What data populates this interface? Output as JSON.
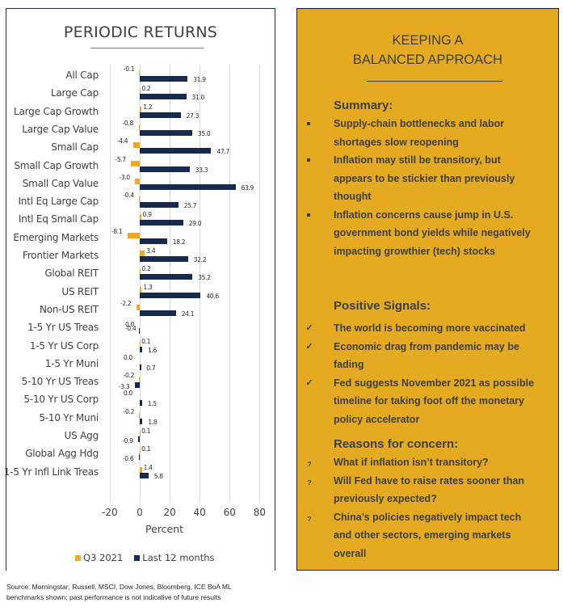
{
  "left_panel": {
    "title": "PERIODIC RETURNS",
    "x_axis_label": "Percent",
    "x_ticks": [
      "-20",
      "0",
      "20",
      "40",
      "60",
      "80"
    ],
    "legend": [
      {
        "label": "Q3 2021",
        "color": "#F5A623"
      },
      {
        "label": "Last 12 months",
        "color": "#172A4E"
      }
    ]
  },
  "chart_data": {
    "type": "bar",
    "orientation": "horizontal",
    "title": "PERIODIC RETURNS",
    "xlabel": "Percent",
    "ylabel": "",
    "xlim": [
      -20,
      80
    ],
    "x_ticks": [
      -20,
      0,
      20,
      40,
      60,
      80
    ],
    "grid": true,
    "legend_position": "bottom",
    "categories": [
      "All Cap",
      "Large Cap",
      "Large Cap Growth",
      "Large Cap Value",
      "Small Cap",
      "Small Cap Growth",
      "Small Cap Value",
      "Intl Eq Large Cap",
      "Intl Eq Small Cap",
      "Emerging Markets",
      "Frontier Markets",
      "Global REIT",
      "US REIT",
      "Non-US REIT",
      "1-5 Yr US Treas",
      "1-5 Yr US Corp",
      "1-5 Yr Muni",
      "5-10 Yr US Treas",
      "5-10 Yr US Corp",
      "5-10 Yr Muni",
      "US Agg",
      "Global Agg Hdg",
      "1-5 Yr Infl Link Treas"
    ],
    "series": [
      {
        "name": "Q3 2021",
        "color": "#F5A623",
        "values": [
          -0.1,
          0.2,
          1.2,
          -0.8,
          -4.4,
          -5.7,
          -3.0,
          -0.4,
          0.9,
          -8.1,
          3.4,
          0.2,
          1.3,
          -2.2,
          0.0,
          0.1,
          0.0,
          -0.2,
          0.0,
          -0.2,
          0.1,
          0.1,
          1.4
        ]
      },
      {
        "name": "Last 12 months",
        "color": "#172A4E",
        "values": [
          31.9,
          31.0,
          27.3,
          35.0,
          47.7,
          33.3,
          63.9,
          25.7,
          29.0,
          18.2,
          32.2,
          35.2,
          40.6,
          24.1,
          -0.4,
          1.6,
          0.7,
          -3.3,
          1.5,
          1.8,
          -0.9,
          -0.6,
          5.8
        ]
      }
    ],
    "value_labels": {
      "Q3 2021": [
        "-0.1",
        "0.2",
        "1.2",
        "-0.8",
        "-4.4",
        "-5.7",
        "-3.0",
        "-0.4",
        "0.9",
        "-8.1",
        "3.4",
        "0.2",
        "1.3",
        "-2.2",
        "0.0",
        "0.1",
        "0.0",
        "-0.2",
        "0.0",
        "-0.2",
        "0.1",
        "0.1",
        "1.4"
      ],
      "Last 12 months": [
        "31.9",
        "31.0",
        "27.3",
        "35.0",
        "47.7",
        "33.3",
        "63.9",
        "25.7",
        "29.0",
        "18.2",
        "32.2",
        "35.2",
        "40.6",
        "24.1",
        "-0.4",
        "1.6",
        "0.7",
        "-3.3",
        "1.5",
        "1.8",
        "-0.9",
        "-0.6",
        "5.8"
      ]
    }
  },
  "right_panel": {
    "background": "#E4AB22",
    "title_line1": "KEEPING A",
    "title_line2": "BALANCED APPROACH",
    "summary": {
      "heading": "Summary:",
      "marker": "square-bullet",
      "items": [
        "Supply-chain bottlenecks and labor shortages slow reopening",
        "Inflation may still be transitory, but appears to be stickier than previously thought",
        "Inflation concerns cause jump in U.S. government bond yields while negatively impacting growthier (tech) stocks"
      ]
    },
    "positive": {
      "heading": "Positive Signals:",
      "marker": "check-icon",
      "marker_glyph": "✓",
      "items": [
        "The world is becoming more vaccinated",
        "Economic drag from pandemic may be fading",
        "Fed suggests November 2021 as possible timeline for taking foot off the monetary policy accelerator"
      ]
    },
    "concern": {
      "heading": "Reasons for concern:",
      "marker": "question-icon",
      "marker_glyph": "?",
      "items": [
        "What if inflation isn’t transitory?",
        "Will Fed have to raise rates sooner than previously expected?",
        "China’s policies negatively impact tech and other sectors, emerging markets overall"
      ]
    }
  },
  "footer": {
    "source_line1": "Source: Morningstar; Russell, MSCI, Dow Jones, Bloomberg, ICE BoA ML",
    "source_line2": "benchmarks shown; past performance is not indicative of future results"
  }
}
